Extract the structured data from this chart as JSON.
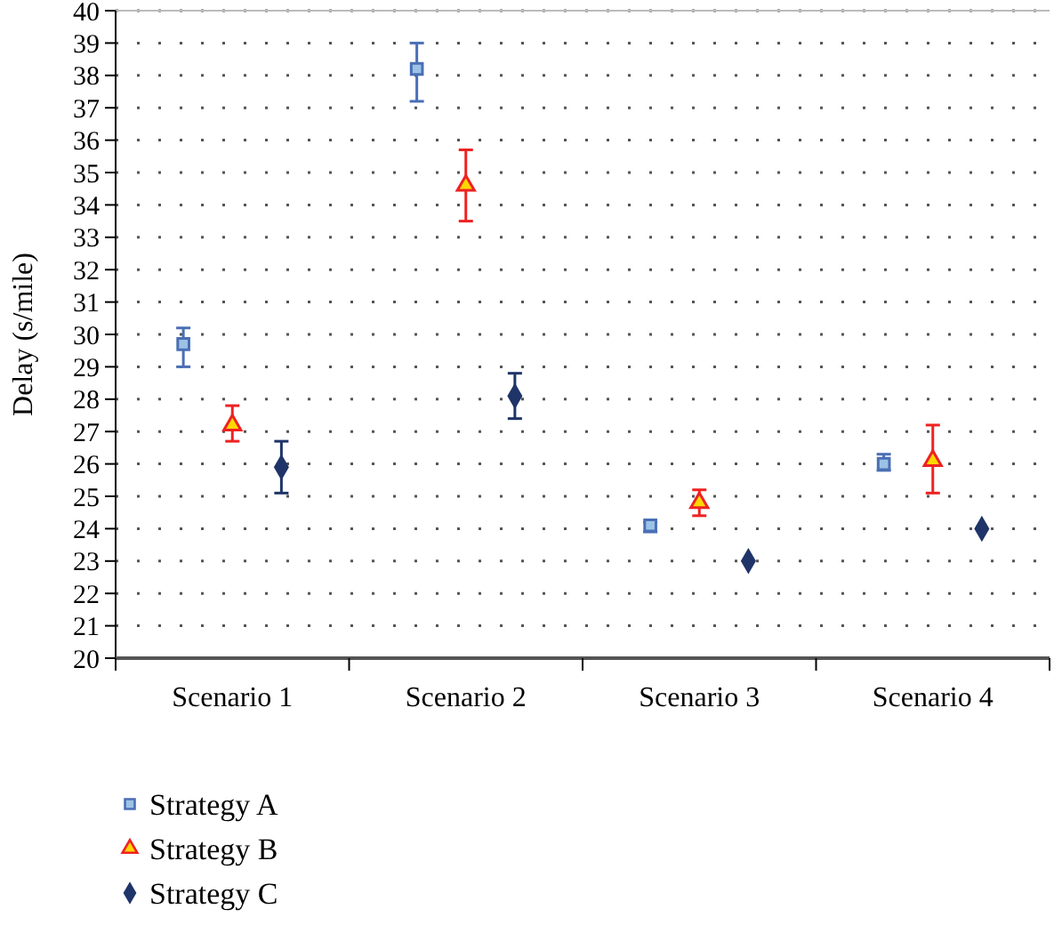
{
  "chart_data": {
    "type": "scatter",
    "ylabel": "Delay (s/mile)",
    "categories": [
      "Scenario 1",
      "Scenario 2",
      "Scenario 3",
      "Scenario 4"
    ],
    "ylim": [
      20,
      40
    ],
    "yticks": [
      20,
      21,
      22,
      23,
      24,
      25,
      26,
      27,
      28,
      29,
      30,
      31,
      32,
      33,
      34,
      35,
      36,
      37,
      38,
      39,
      40
    ],
    "grid": "y",
    "legend": "bottom",
    "series": [
      {
        "name": "Strategy A",
        "color": "#4a6fb5",
        "marker": "square",
        "values": [
          29.7,
          38.2,
          24.1,
          26.0
        ],
        "errors": [
          [
            29.0,
            30.2
          ],
          [
            37.2,
            39.0
          ],
          [
            23.9,
            24.2
          ],
          [
            25.8,
            26.3
          ]
        ]
      },
      {
        "name": "Strategy B",
        "color": "#ee2222",
        "marker": "triangle",
        "values": [
          27.2,
          34.6,
          24.8,
          26.1
        ],
        "errors": [
          [
            26.7,
            27.8
          ],
          [
            33.5,
            35.7
          ],
          [
            24.4,
            25.2
          ],
          [
            25.1,
            27.2
          ]
        ]
      },
      {
        "name": "Strategy C",
        "color": "#1f3468",
        "marker": "diamond",
        "values": [
          25.9,
          28.1,
          23.0,
          24.0
        ],
        "errors": [
          [
            25.1,
            26.7
          ],
          [
            27.4,
            28.8
          ],
          null,
          null
        ]
      }
    ]
  }
}
